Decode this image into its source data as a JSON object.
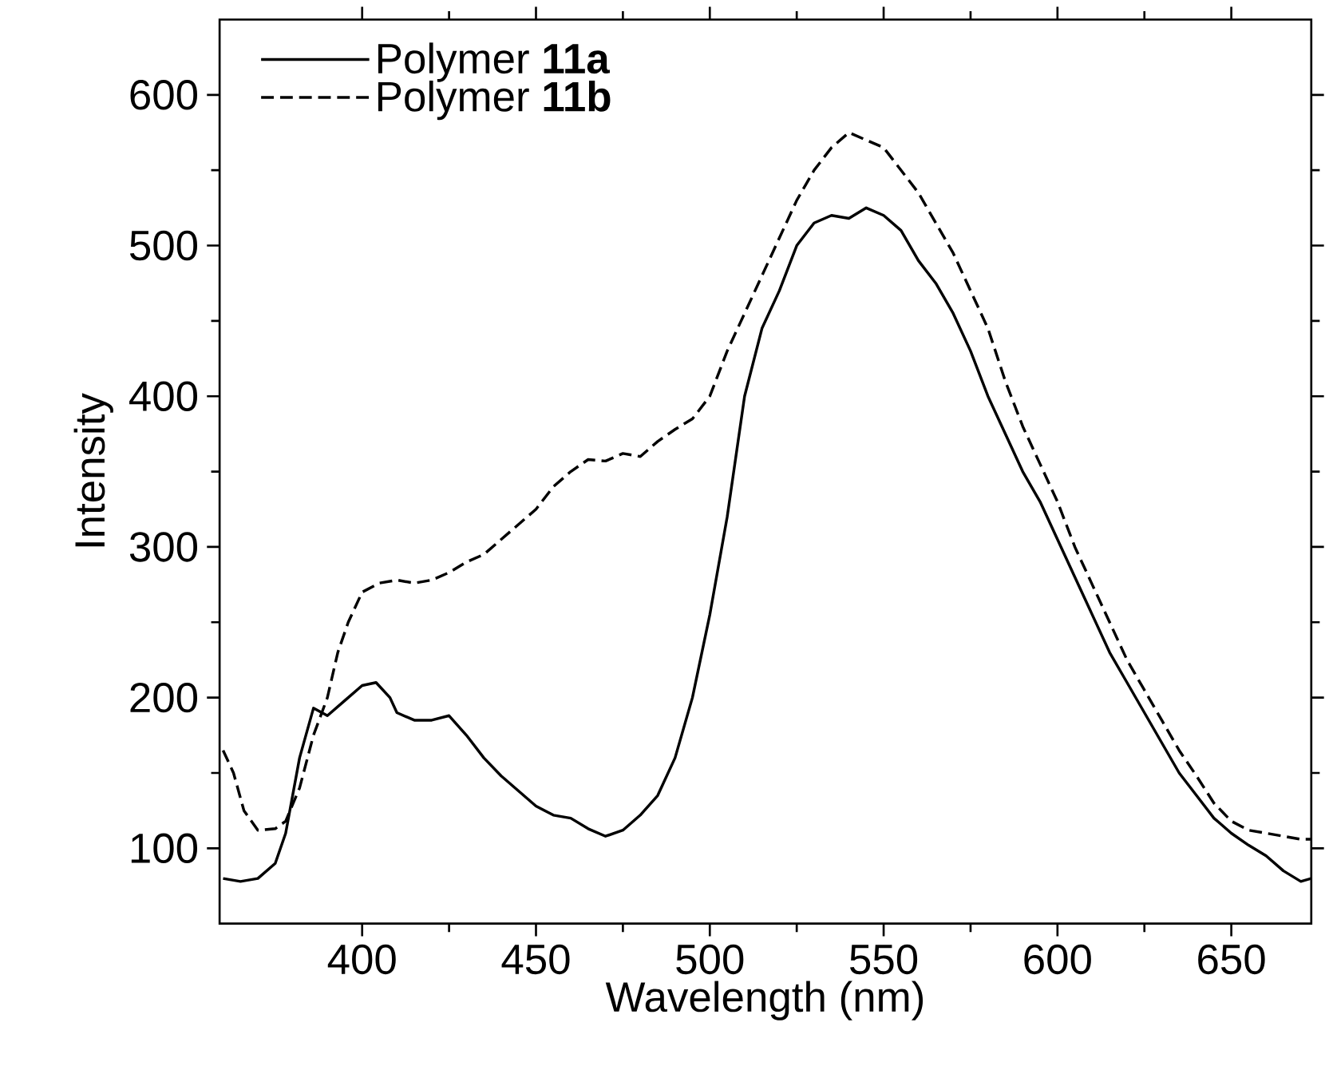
{
  "chart_data": {
    "type": "line",
    "xlabel": "Wavelength (nm)",
    "ylabel": "Intensity",
    "xlim": [
      359,
      673
    ],
    "ylim": [
      50,
      650
    ],
    "xticks": [
      400,
      450,
      500,
      550,
      600,
      650
    ],
    "yticks": [
      100,
      200,
      300,
      400,
      500,
      600
    ],
    "legend": "top left",
    "grid": false,
    "marker": "none",
    "series": [
      {
        "name": "Polymer **11a**",
        "color": "#000000",
        "line_style": "solid",
        "x": [
          360,
          365,
          370,
          375,
          378,
          382,
          386,
          390,
          395,
          400,
          404,
          408,
          410,
          415,
          420,
          425,
          430,
          435,
          440,
          445,
          450,
          455,
          460,
          465,
          470,
          475,
          480,
          485,
          490,
          495,
          500,
          505,
          510,
          515,
          520,
          525,
          530,
          535,
          540,
          545,
          550,
          555,
          560,
          565,
          570,
          575,
          580,
          585,
          590,
          595,
          600,
          605,
          610,
          615,
          620,
          625,
          630,
          635,
          640,
          645,
          650,
          655,
          660,
          665,
          670,
          673
        ],
        "values": [
          80,
          78,
          80,
          90,
          110,
          160,
          193,
          188,
          198,
          208,
          210,
          200,
          190,
          185,
          185,
          188,
          175,
          160,
          148,
          138,
          128,
          122,
          120,
          113,
          108,
          112,
          122,
          135,
          160,
          200,
          255,
          320,
          400,
          445,
          470,
          500,
          515,
          520,
          518,
          525,
          520,
          510,
          490,
          475,
          455,
          430,
          400,
          375,
          350,
          330,
          305,
          280,
          255,
          230,
          210,
          190,
          170,
          150,
          135,
          120,
          110,
          102,
          95,
          85,
          78,
          80
        ]
      },
      {
        "name": "Polymer **11b**",
        "color": "#000000",
        "line_style": "dashed",
        "x": [
          360,
          363,
          366,
          370,
          375,
          378,
          382,
          386,
          390,
          393,
          396,
          400,
          405,
          410,
          415,
          420,
          425,
          430,
          435,
          440,
          445,
          450,
          455,
          460,
          465,
          470,
          475,
          480,
          485,
          490,
          495,
          500,
          505,
          510,
          515,
          520,
          525,
          530,
          535,
          540,
          545,
          550,
          555,
          560,
          565,
          570,
          575,
          580,
          585,
          590,
          595,
          600,
          605,
          610,
          615,
          620,
          625,
          630,
          635,
          640,
          645,
          650,
          655,
          660,
          665,
          670,
          673
        ],
        "values": [
          165,
          150,
          125,
          112,
          113,
          118,
          140,
          175,
          200,
          230,
          250,
          270,
          276,
          278,
          276,
          278,
          283,
          290,
          295,
          305,
          315,
          325,
          340,
          350,
          358,
          357,
          362,
          360,
          370,
          378,
          385,
          400,
          430,
          455,
          480,
          505,
          530,
          550,
          565,
          575,
          570,
          565,
          550,
          535,
          515,
          495,
          470,
          445,
          410,
          380,
          355,
          330,
          300,
          275,
          250,
          225,
          205,
          185,
          165,
          148,
          130,
          118,
          112,
          110,
          108,
          106,
          106
        ]
      }
    ]
  }
}
